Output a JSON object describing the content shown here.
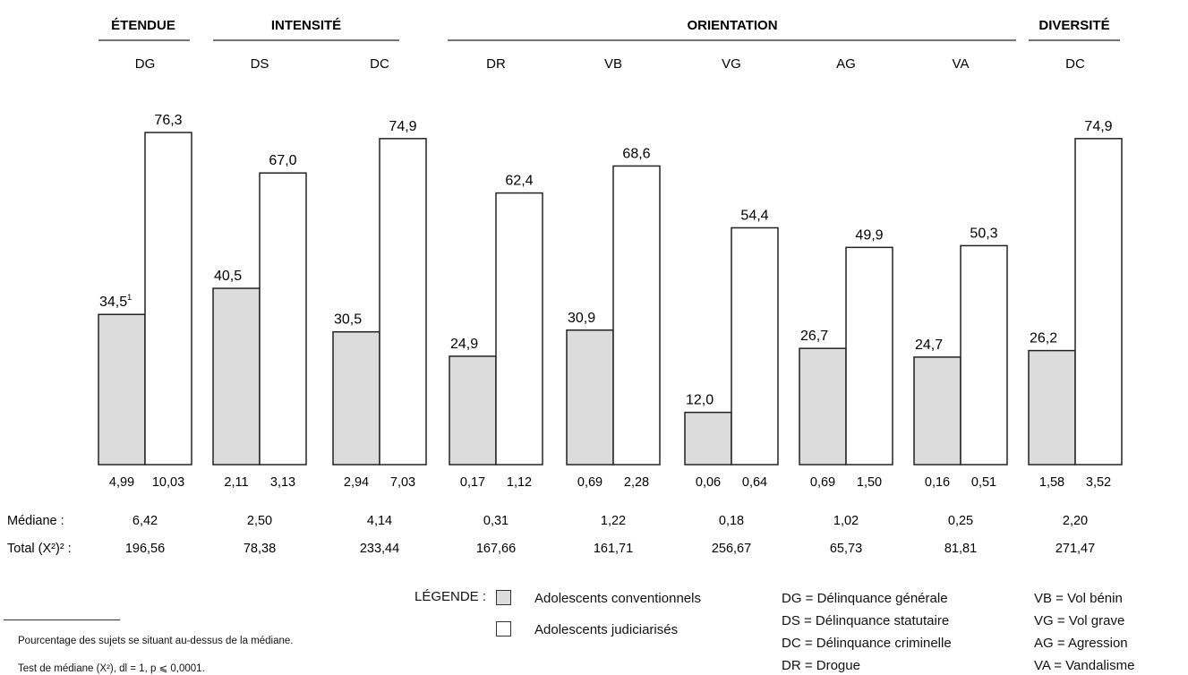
{
  "chart_data": {
    "type": "bar",
    "groups": [
      "ÉTENDUE",
      "INTENSITÉ",
      "ORIENTATION",
      "DIVERSITÉ"
    ],
    "categories": [
      "DG",
      "DS",
      "DC",
      "DR",
      "VB",
      "VG",
      "AG",
      "VA",
      "DC"
    ],
    "series": [
      {
        "name": "Adolescents conventionnels",
        "values": [
          34.5,
          40.5,
          30.5,
          24.9,
          30.9,
          12.0,
          26.7,
          24.7,
          26.2
        ],
        "labels": [
          "34,5",
          "40,5",
          "30,5",
          "24,9",
          "30,9",
          "12,0",
          "26,7",
          "24,7",
          "26,2"
        ],
        "means": [
          "4,99",
          "2,11",
          "2,94",
          "0,17",
          "0,69",
          "0,06",
          "0,69",
          "0,16",
          "1,58"
        ],
        "color": "#dcdcdc"
      },
      {
        "name": "Adolescents judiciarisés",
        "values": [
          76.3,
          67.0,
          74.9,
          62.4,
          68.6,
          54.4,
          49.9,
          50.3,
          74.9
        ],
        "labels": [
          "76,3",
          "67,0",
          "74,9",
          "62,4",
          "68,6",
          "54,4",
          "49,9",
          "50,3",
          "74,9"
        ],
        "means": [
          "10,03",
          "3,13",
          "7,03",
          "1,12",
          "2,28",
          "0,64",
          "1,50",
          "0,51",
          "3,52"
        ],
        "color": "#ffffff"
      }
    ],
    "first_label_sup": "1",
    "mediane_label": "Médiane :",
    "mediane": [
      "6,42",
      "2,50",
      "4,14",
      "0,31",
      "1,22",
      "0,18",
      "1,02",
      "0,25",
      "2,20"
    ],
    "total_label": "Total (X²)² :",
    "total": [
      "196,56",
      "78,38",
      "233,44",
      "167,66",
      "161,71",
      "256,67",
      "65,73",
      "81,81",
      "271,47"
    ]
  },
  "legend": {
    "title": "LÉGENDE :",
    "items": [
      "Adolescents conventionnels",
      "Adolescents judiciarisés"
    ],
    "abbreviations": [
      "DG = Délinquance générale",
      "DS = Délinquance statutaire",
      "DC = Délinquance criminelle",
      "DR = Drogue",
      "VB = Vol bénin",
      "VG = Vol grave",
      "AG = Agression",
      "VA = Vandalisme"
    ]
  },
  "footnotes": [
    "Pourcentage des sujets se situant au-dessus de la médiane.",
    "Test de médiane (X²), dl = 1, p ⩽ 0,0001."
  ]
}
